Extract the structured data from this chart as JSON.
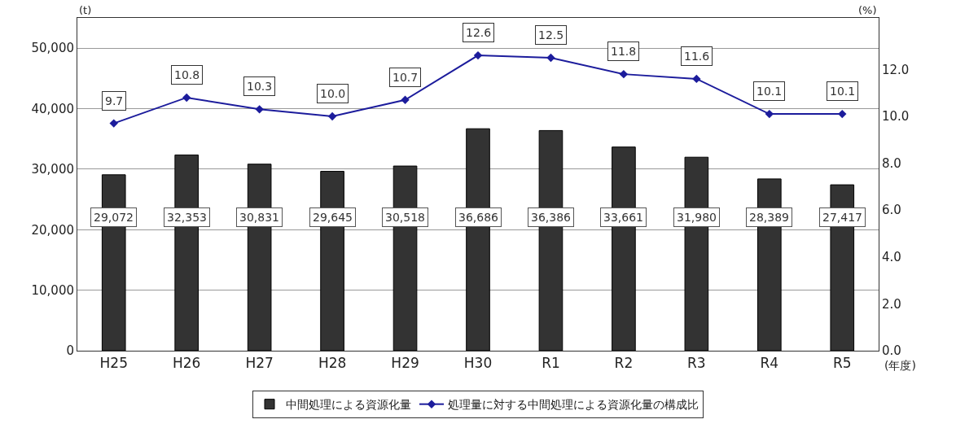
{
  "chart_data": {
    "type": "bar",
    "categories": [
      "H25",
      "H26",
      "H27",
      "H28",
      "H29",
      "H30",
      "R1",
      "R2",
      "R3",
      "R4",
      "R5"
    ],
    "xlabel": "(年度)",
    "ylabel": "(t)",
    "y2label": "(%)",
    "series": [
      {
        "name": "中間処理による資源化量",
        "color": "#333333",
        "values": [
          29072,
          32353,
          30831,
          29645,
          30518,
          36686,
          36386,
          33661,
          31980,
          28389,
          27417
        ],
        "value_labels": [
          "29,072",
          "32,353",
          "30,831",
          "29,645",
          "30,518",
          "36,686",
          "36,386",
          "33,661",
          "31,980",
          "28,389",
          "27,417"
        ]
      },
      {
        "name": "処理量に対する中間処理による資源化量の構成比",
        "type": "line",
        "axis": "y2",
        "color": "#1c1c9c",
        "marker": "diamond",
        "values": [
          9.7,
          10.8,
          10.3,
          10.0,
          10.7,
          12.6,
          12.5,
          11.8,
          11.6,
          10.1,
          10.1
        ],
        "value_labels": [
          "9.7",
          "10.8",
          "10.3",
          "10.0",
          "10.7",
          "12.6",
          "12.5",
          "11.8",
          "11.6",
          "10.1",
          "10.1"
        ]
      }
    ],
    "ylim": [
      0,
      55000
    ],
    "yticks": [
      {
        "value": 0,
        "label": "0"
      },
      {
        "value": 10000,
        "label": "10,000"
      },
      {
        "value": 20000,
        "label": "20,000"
      },
      {
        "value": 30000,
        "label": "30,000"
      },
      {
        "value": 40000,
        "label": "40,000"
      },
      {
        "value": 50000,
        "label": "50,000"
      }
    ],
    "y2lim": [
      0,
      14.2
    ],
    "y2ticks": [
      {
        "value": 0,
        "label": "0.0"
      },
      {
        "value": 2,
        "label": "2.0"
      },
      {
        "value": 4,
        "label": "4.0"
      },
      {
        "value": 6,
        "label": "6.0"
      },
      {
        "value": 8,
        "label": "8.0"
      },
      {
        "value": 10,
        "label": "10.0"
      },
      {
        "value": 12,
        "label": "12.0"
      }
    ],
    "grid": "y",
    "legend": "bottom"
  }
}
